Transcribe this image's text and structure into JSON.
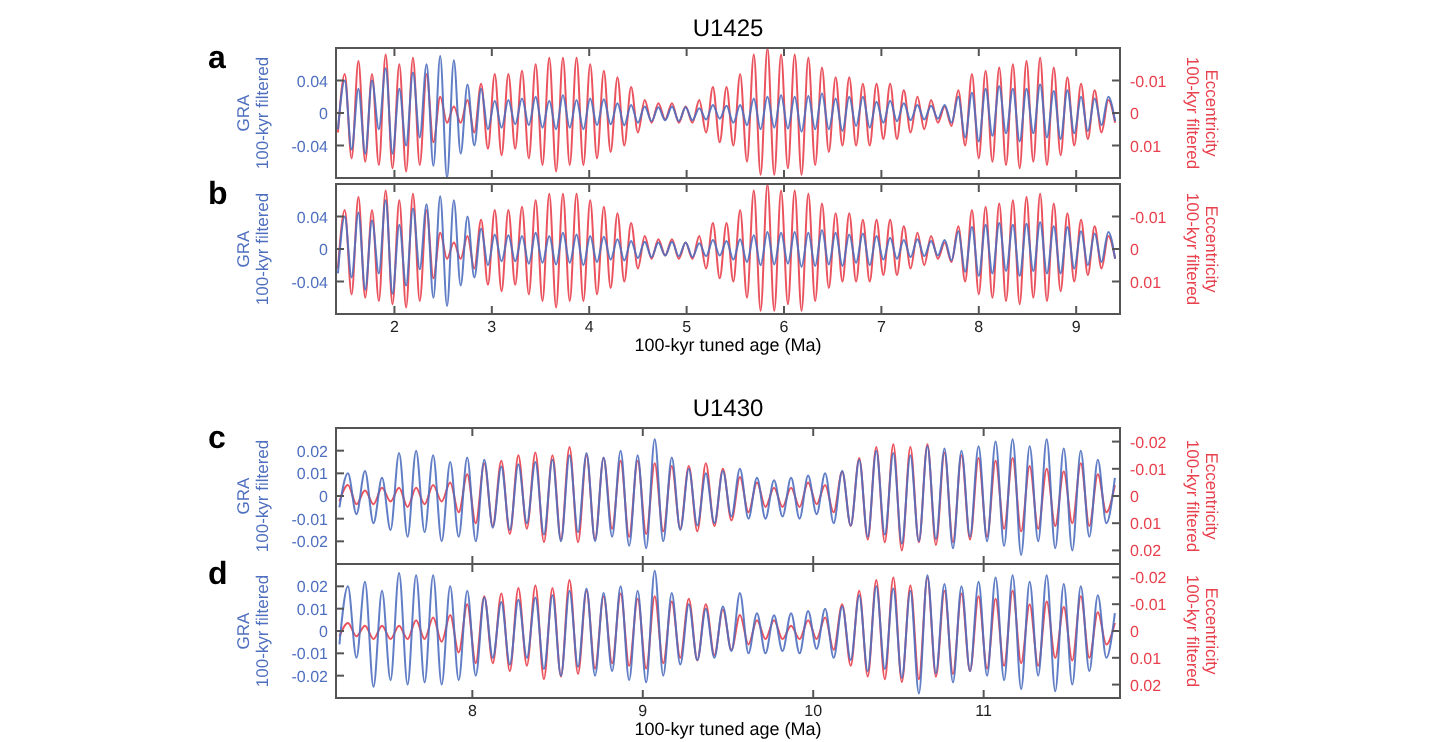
{
  "chart_data": [
    {
      "type": "line",
      "title": "U1425",
      "ylabel": "GRA\n100-kyr filtered",
      "y2label": "Eccentricity\n100-kyr filtered",
      "annotations": [
        "a"
      ],
      "tick_labels": "y",
      "xlim": [
        1.4,
        9.45
      ],
      "xticks": [
        2,
        3,
        4,
        5,
        6,
        7,
        8,
        9
      ],
      "ylim": [
        -0.08,
        0.08
      ],
      "yticks": [
        -0.04,
        0,
        0.04
      ],
      "y2lim": [
        0.02,
        -0.02
      ],
      "y2ticks": [
        0.01,
        0,
        -0.01
      ],
      "x": [
        1.42,
        1.49,
        1.56,
        1.63,
        1.7,
        1.77,
        1.84,
        1.91,
        1.98,
        2.05,
        2.12,
        2.19,
        2.26,
        2.33,
        2.4,
        2.47,
        2.54,
        2.61,
        2.68,
        2.75,
        2.82,
        2.89,
        2.96,
        3.03,
        3.1,
        3.17,
        3.24,
        3.31,
        3.38,
        3.45,
        3.52,
        3.59,
        3.66,
        3.73,
        3.8,
        3.87,
        3.94,
        4.01,
        4.08,
        4.15,
        4.22,
        4.29,
        4.36,
        4.43,
        4.5,
        4.57,
        4.64,
        4.71,
        4.78,
        4.85,
        4.92,
        4.99,
        5.06,
        5.13,
        5.2,
        5.27,
        5.34,
        5.41,
        5.48,
        5.55,
        5.62,
        5.69,
        5.76,
        5.83,
        5.9,
        5.97,
        6.04,
        6.11,
        6.18,
        6.25,
        6.32,
        6.39,
        6.46,
        6.53,
        6.6,
        6.67,
        6.74,
        6.81,
        6.88,
        6.95,
        7.02,
        7.09,
        7.16,
        7.23,
        7.3,
        7.37,
        7.44,
        7.51,
        7.58,
        7.65,
        7.72,
        7.79,
        7.86,
        7.93,
        8.0,
        8.07,
        8.14,
        8.21,
        8.28,
        8.35,
        8.42,
        8.49,
        8.56,
        8.63,
        8.7,
        8.77,
        8.84,
        8.91,
        8.98,
        9.05,
        9.12,
        9.19,
        9.26,
        9.33,
        9.4
      ],
      "series": [
        {
          "color": "#e8404c",
          "axis": "y2",
          "values": [
            0.006,
            -0.012,
            0.014,
            -0.016,
            0.015,
            -0.012,
            0.016,
            -0.018,
            0.017,
            -0.015,
            0.018,
            -0.017,
            0.016,
            -0.012,
            0.009,
            -0.005,
            0.003,
            -0.002,
            0.003,
            -0.004,
            0.006,
            -0.009,
            0.011,
            -0.012,
            0.013,
            -0.012,
            0.011,
            -0.013,
            0.014,
            -0.015,
            0.016,
            -0.017,
            0.018,
            -0.017,
            0.016,
            -0.017,
            0.016,
            -0.015,
            0.014,
            -0.013,
            0.012,
            -0.011,
            0.01,
            -0.008,
            0.006,
            -0.004,
            0.003,
            -0.003,
            0.002,
            -0.003,
            0.003,
            -0.002,
            0.003,
            -0.004,
            0.006,
            -0.008,
            0.009,
            -0.008,
            0.01,
            -0.012,
            0.015,
            -0.018,
            0.019,
            -0.02,
            0.019,
            -0.018,
            0.017,
            -0.018,
            0.019,
            -0.017,
            0.016,
            -0.014,
            0.012,
            -0.011,
            0.01,
            -0.011,
            0.01,
            -0.009,
            0.01,
            -0.009,
            0.008,
            -0.009,
            0.008,
            -0.007,
            0.006,
            -0.005,
            0.005,
            -0.004,
            0.003,
            -0.002,
            0.004,
            -0.007,
            0.01,
            -0.012,
            0.014,
            -0.013,
            0.015,
            -0.014,
            0.016,
            -0.015,
            0.017,
            -0.016,
            0.015,
            -0.017,
            0.016,
            -0.014,
            0.013,
            -0.011,
            0.01,
            -0.009,
            0.008,
            -0.007,
            0.006,
            -0.004,
            0.003
          ]
        },
        {
          "color": "#4f6fbf",
          "values": [
            -0.02,
            0.04,
            -0.045,
            0.03,
            -0.05,
            0.04,
            -0.02,
            0.055,
            -0.05,
            0.03,
            -0.04,
            0.05,
            -0.03,
            0.06,
            -0.065,
            0.07,
            -0.08,
            0.065,
            -0.05,
            0.035,
            -0.04,
            0.03,
            -0.02,
            0.015,
            -0.018,
            0.016,
            -0.014,
            0.018,
            -0.015,
            0.02,
            -0.018,
            0.015,
            -0.02,
            0.022,
            -0.018,
            0.016,
            -0.02,
            0.018,
            -0.015,
            0.017,
            -0.014,
            0.012,
            -0.015,
            0.01,
            -0.012,
            0.008,
            -0.01,
            0.007,
            -0.009,
            0.008,
            -0.01,
            0.007,
            -0.009,
            0.006,
            -0.008,
            0.01,
            -0.007,
            0.009,
            -0.012,
            0.01,
            -0.015,
            0.018,
            -0.02,
            0.02,
            -0.018,
            0.022,
            -0.019,
            0.02,
            -0.023,
            0.021,
            -0.02,
            0.024,
            -0.02,
            0.018,
            -0.022,
            0.02,
            -0.016,
            0.02,
            -0.018,
            0.014,
            -0.012,
            0.015,
            -0.01,
            0.012,
            -0.009,
            0.01,
            -0.008,
            0.009,
            -0.007,
            0.01,
            -0.012,
            0.02,
            -0.03,
            0.025,
            -0.035,
            0.03,
            -0.028,
            0.033,
            -0.025,
            0.03,
            -0.035,
            0.03,
            -0.025,
            0.035,
            -0.03,
            0.027,
            -0.032,
            0.028,
            -0.025,
            0.02,
            -0.022,
            0.018,
            -0.015,
            0.02,
            -0.01
          ]
        }
      ]
    },
    {
      "type": "line",
      "xlabel": "100-kyr tuned age (Ma)",
      "ylabel": "GRA\n100-kyr filtered",
      "y2label": "Eccentricity\n100-kyr filtered",
      "annotations": [
        "b"
      ],
      "xlim": [
        1.4,
        9.45
      ],
      "xticks": [
        2,
        3,
        4,
        5,
        6,
        7,
        8,
        9
      ],
      "ylim": [
        -0.08,
        0.08
      ],
      "yticks": [
        -0.04,
        0,
        0.04
      ],
      "y2lim": [
        0.02,
        -0.02
      ],
      "y2ticks": [
        0.01,
        0,
        -0.01
      ],
      "x": [
        1.42,
        1.49,
        1.56,
        1.63,
        1.7,
        1.77,
        1.84,
        1.91,
        1.98,
        2.05,
        2.12,
        2.19,
        2.26,
        2.33,
        2.4,
        2.47,
        2.54,
        2.61,
        2.68,
        2.75,
        2.82,
        2.89,
        2.96,
        3.03,
        3.1,
        3.17,
        3.24,
        3.31,
        3.38,
        3.45,
        3.52,
        3.59,
        3.66,
        3.73,
        3.8,
        3.87,
        3.94,
        4.01,
        4.08,
        4.15,
        4.22,
        4.29,
        4.36,
        4.43,
        4.5,
        4.57,
        4.64,
        4.71,
        4.78,
        4.85,
        4.92,
        4.99,
        5.06,
        5.13,
        5.2,
        5.27,
        5.34,
        5.41,
        5.48,
        5.55,
        5.62,
        5.69,
        5.76,
        5.83,
        5.9,
        5.97,
        6.04,
        6.11,
        6.18,
        6.25,
        6.32,
        6.39,
        6.46,
        6.53,
        6.6,
        6.67,
        6.74,
        6.81,
        6.88,
        6.95,
        7.02,
        7.09,
        7.16,
        7.23,
        7.3,
        7.37,
        7.44,
        7.51,
        7.58,
        7.65,
        7.72,
        7.79,
        7.86,
        7.93,
        8.0,
        8.07,
        8.14,
        8.21,
        8.28,
        8.35,
        8.42,
        8.49,
        8.56,
        8.63,
        8.7,
        8.77,
        8.84,
        8.91,
        8.98,
        9.05,
        9.12,
        9.19,
        9.26,
        9.33,
        9.4
      ],
      "series": [
        {
          "color": "#e8404c",
          "axis": "y2",
          "values": [
            0.006,
            -0.012,
            0.014,
            -0.016,
            0.015,
            -0.012,
            0.016,
            -0.018,
            0.017,
            -0.015,
            0.018,
            -0.017,
            0.016,
            -0.012,
            0.009,
            -0.005,
            0.003,
            -0.002,
            0.003,
            -0.004,
            0.006,
            -0.009,
            0.011,
            -0.012,
            0.013,
            -0.012,
            0.011,
            -0.013,
            0.014,
            -0.015,
            0.016,
            -0.017,
            0.018,
            -0.017,
            0.016,
            -0.017,
            0.016,
            -0.015,
            0.014,
            -0.013,
            0.012,
            -0.011,
            0.01,
            -0.008,
            0.006,
            -0.004,
            0.003,
            -0.003,
            0.002,
            -0.003,
            0.003,
            -0.002,
            0.003,
            -0.004,
            0.006,
            -0.008,
            0.009,
            -0.008,
            0.01,
            -0.012,
            0.015,
            -0.018,
            0.019,
            -0.02,
            0.019,
            -0.018,
            0.017,
            -0.018,
            0.019,
            -0.017,
            0.016,
            -0.014,
            0.012,
            -0.011,
            0.01,
            -0.011,
            0.01,
            -0.009,
            0.01,
            -0.009,
            0.008,
            -0.009,
            0.008,
            -0.007,
            0.006,
            -0.005,
            0.005,
            -0.004,
            0.003,
            -0.002,
            0.004,
            -0.007,
            0.01,
            -0.012,
            0.014,
            -0.013,
            0.015,
            -0.014,
            0.016,
            -0.015,
            0.017,
            -0.016,
            0.015,
            -0.017,
            0.016,
            -0.014,
            0.013,
            -0.011,
            0.01,
            -0.009,
            0.008,
            -0.007,
            0.006,
            -0.004,
            0.003
          ]
        },
        {
          "color": "#4f6fbf",
          "values": [
            -0.03,
            0.04,
            -0.035,
            0.045,
            -0.05,
            0.035,
            -0.03,
            0.06,
            -0.055,
            0.03,
            -0.045,
            0.05,
            -0.025,
            0.055,
            -0.06,
            0.065,
            -0.07,
            0.06,
            -0.045,
            0.04,
            -0.035,
            0.025,
            -0.02,
            0.018,
            -0.015,
            0.017,
            -0.015,
            0.016,
            -0.018,
            0.02,
            -0.017,
            0.016,
            -0.019,
            0.02,
            -0.017,
            0.018,
            -0.02,
            0.016,
            -0.016,
            0.015,
            -0.013,
            0.012,
            -0.014,
            0.01,
            -0.011,
            0.009,
            -0.01,
            0.008,
            -0.008,
            0.009,
            -0.009,
            0.008,
            -0.01,
            0.007,
            -0.009,
            0.011,
            -0.008,
            0.01,
            -0.013,
            0.012,
            -0.016,
            0.017,
            -0.02,
            0.021,
            -0.019,
            0.02,
            -0.018,
            0.021,
            -0.022,
            0.02,
            -0.021,
            0.023,
            -0.019,
            0.02,
            -0.021,
            0.018,
            -0.017,
            0.019,
            -0.02,
            0.016,
            -0.013,
            0.014,
            -0.012,
            0.011,
            -0.01,
            0.012,
            -0.009,
            0.01,
            -0.008,
            0.011,
            -0.014,
            0.022,
            -0.028,
            0.027,
            -0.033,
            0.03,
            -0.03,
            0.032,
            -0.027,
            0.03,
            -0.033,
            0.031,
            -0.027,
            0.033,
            -0.03,
            0.028,
            -0.03,
            0.027,
            -0.024,
            0.022,
            -0.02,
            0.019,
            -0.016,
            0.021,
            -0.012
          ]
        }
      ]
    },
    {
      "type": "line",
      "title": "U1430",
      "ylabel": "GRA\n100-kyr filtered",
      "y2label": "Eccentricity\n100-kyr filtered",
      "annotations": [
        "c"
      ],
      "tick_labels": "y",
      "xlim": [
        7.2,
        11.8
      ],
      "xticks": [
        8,
        9,
        10,
        11
      ],
      "ylim": [
        -0.03,
        0.03
      ],
      "yticks": [
        -0.02,
        -0.01,
        0,
        0.01,
        0.02
      ],
      "y2lim": [
        0.025,
        -0.025
      ],
      "y2ticks": [
        0.02,
        0.01,
        0,
        -0.01,
        -0.02
      ],
      "x": [
        7.22,
        7.27,
        7.32,
        7.37,
        7.42,
        7.47,
        7.52,
        7.57,
        7.62,
        7.67,
        7.72,
        7.77,
        7.82,
        7.87,
        7.92,
        7.97,
        8.02,
        8.07,
        8.12,
        8.17,
        8.22,
        8.27,
        8.32,
        8.37,
        8.42,
        8.47,
        8.52,
        8.57,
        8.62,
        8.67,
        8.72,
        8.77,
        8.82,
        8.87,
        8.92,
        8.97,
        9.02,
        9.07,
        9.12,
        9.17,
        9.22,
        9.27,
        9.32,
        9.37,
        9.42,
        9.47,
        9.52,
        9.57,
        9.62,
        9.67,
        9.72,
        9.77,
        9.82,
        9.87,
        9.92,
        9.97,
        10.02,
        10.07,
        10.12,
        10.17,
        10.22,
        10.27,
        10.32,
        10.37,
        10.42,
        10.47,
        10.52,
        10.57,
        10.62,
        10.67,
        10.72,
        10.77,
        10.82,
        10.87,
        10.92,
        10.97,
        11.02,
        11.07,
        11.12,
        11.17,
        11.22,
        11.27,
        11.32,
        11.37,
        11.42,
        11.47,
        11.52,
        11.57,
        11.62,
        11.67,
        11.72,
        11.77
      ],
      "series": [
        {
          "color": "#e8404c",
          "axis": "y2",
          "values": [
            0.002,
            -0.004,
            0.003,
            -0.002,
            0.003,
            -0.003,
            0.002,
            -0.003,
            0.004,
            -0.003,
            0.003,
            -0.004,
            0.002,
            -0.005,
            0.006,
            -0.008,
            0.01,
            -0.012,
            0.011,
            -0.013,
            0.014,
            -0.015,
            0.012,
            -0.016,
            0.017,
            -0.015,
            0.016,
            -0.018,
            0.017,
            -0.015,
            0.016,
            -0.014,
            0.012,
            -0.013,
            0.015,
            -0.013,
            0.014,
            -0.012,
            0.013,
            -0.011,
            0.012,
            -0.011,
            0.013,
            -0.012,
            0.011,
            -0.01,
            0.009,
            -0.007,
            0.006,
            -0.005,
            0.004,
            -0.003,
            0.004,
            -0.003,
            0.004,
            -0.005,
            0.003,
            -0.004,
            0.006,
            -0.009,
            0.011,
            -0.014,
            0.016,
            -0.018,
            0.017,
            -0.019,
            0.02,
            -0.018,
            0.017,
            -0.019,
            0.018,
            -0.016,
            0.017,
            -0.015,
            0.016,
            -0.014,
            0.015,
            -0.013,
            0.012,
            -0.014,
            0.013,
            -0.011,
            0.012,
            -0.01,
            0.011,
            -0.009,
            0.01,
            -0.012,
            0.011,
            -0.008,
            0.006,
            -0.004
          ]
        },
        {
          "color": "#4f6fbf",
          "values": [
            -0.005,
            0.01,
            -0.008,
            0.011,
            -0.012,
            0.008,
            -0.015,
            0.019,
            -0.018,
            0.02,
            -0.016,
            0.018,
            -0.02,
            0.015,
            -0.018,
            0.017,
            -0.02,
            0.016,
            -0.014,
            0.013,
            -0.015,
            0.014,
            -0.012,
            0.015,
            -0.017,
            0.016,
            -0.02,
            0.018,
            -0.016,
            0.019,
            -0.02,
            0.017,
            -0.018,
            0.02,
            -0.022,
            0.018,
            -0.023,
            0.025,
            -0.02,
            0.017,
            -0.015,
            0.012,
            -0.013,
            0.01,
            -0.012,
            0.011,
            -0.009,
            0.012,
            -0.01,
            0.008,
            -0.01,
            0.007,
            -0.009,
            0.008,
            -0.01,
            0.009,
            -0.008,
            0.01,
            -0.012,
            0.011,
            -0.013,
            0.016,
            -0.018,
            0.02,
            -0.017,
            0.019,
            -0.021,
            0.018,
            -0.02,
            0.022,
            -0.019,
            0.021,
            -0.023,
            0.02,
            -0.018,
            0.022,
            -0.02,
            0.024,
            -0.022,
            0.025,
            -0.026,
            0.022,
            -0.02,
            0.025,
            -0.023,
            0.021,
            -0.024,
            0.02,
            -0.018,
            0.016,
            -0.012,
            0.008
          ]
        }
      ]
    },
    {
      "type": "line",
      "xlabel": "100-kyr tuned age (Ma)",
      "ylabel": "GRA\n100-kyr filtered",
      "y2label": "Eccentricity\n100-kyr filtered",
      "annotations": [
        "d"
      ],
      "xlim": [
        7.2,
        11.8
      ],
      "xticks": [
        8,
        9,
        10,
        11
      ],
      "ylim": [
        -0.03,
        0.03
      ],
      "yticks": [
        -0.02,
        -0.01,
        0,
        0.01,
        0.02
      ],
      "y2lim": [
        0.025,
        -0.025
      ],
      "y2ticks": [
        0.02,
        0.01,
        0,
        -0.01,
        -0.02
      ],
      "x": [
        7.22,
        7.27,
        7.32,
        7.37,
        7.42,
        7.47,
        7.52,
        7.57,
        7.62,
        7.67,
        7.72,
        7.77,
        7.82,
        7.87,
        7.92,
        7.97,
        8.02,
        8.07,
        8.12,
        8.17,
        8.22,
        8.27,
        8.32,
        8.37,
        8.42,
        8.47,
        8.52,
        8.57,
        8.62,
        8.67,
        8.72,
        8.77,
        8.82,
        8.87,
        8.92,
        8.97,
        9.02,
        9.07,
        9.12,
        9.17,
        9.22,
        9.27,
        9.32,
        9.37,
        9.42,
        9.47,
        9.52,
        9.57,
        9.62,
        9.67,
        9.72,
        9.77,
        9.82,
        9.87,
        9.92,
        9.97,
        10.02,
        10.07,
        10.12,
        10.17,
        10.22,
        10.27,
        10.32,
        10.37,
        10.42,
        10.47,
        10.52,
        10.57,
        10.62,
        10.67,
        10.72,
        10.77,
        10.82,
        10.87,
        10.92,
        10.97,
        11.02,
        11.07,
        11.12,
        11.17,
        11.22,
        11.27,
        11.32,
        11.37,
        11.42,
        11.47,
        11.52,
        11.57,
        11.62,
        11.67,
        11.72,
        11.77
      ],
      "series": [
        {
          "color": "#e8404c",
          "axis": "y2",
          "values": [
            0.002,
            -0.003,
            0.002,
            -0.002,
            0.003,
            -0.002,
            0.003,
            -0.002,
            0.003,
            -0.004,
            0.003,
            -0.005,
            0.004,
            -0.006,
            0.008,
            -0.01,
            0.012,
            -0.013,
            0.012,
            -0.014,
            0.015,
            -0.016,
            0.013,
            -0.017,
            0.018,
            -0.016,
            0.017,
            -0.019,
            0.016,
            -0.015,
            0.014,
            -0.013,
            0.012,
            -0.014,
            0.013,
            -0.012,
            0.014,
            -0.013,
            0.012,
            -0.011,
            0.01,
            -0.012,
            0.011,
            -0.01,
            0.009,
            -0.008,
            0.007,
            -0.006,
            0.005,
            -0.004,
            0.003,
            -0.004,
            0.003,
            -0.002,
            0.003,
            -0.004,
            0.003,
            -0.005,
            0.007,
            -0.01,
            0.013,
            -0.015,
            0.017,
            -0.019,
            0.018,
            -0.02,
            0.019,
            -0.017,
            0.018,
            -0.02,
            0.017,
            -0.015,
            0.016,
            -0.014,
            0.015,
            -0.013,
            0.014,
            -0.012,
            0.013,
            -0.015,
            0.012,
            -0.01,
            0.013,
            -0.011,
            0.01,
            -0.009,
            0.011,
            -0.013,
            0.01,
            -0.007,
            0.005,
            -0.003
          ]
        },
        {
          "color": "#4f6fbf",
          "values": [
            -0.006,
            0.02,
            -0.012,
            0.022,
            -0.025,
            0.018,
            -0.022,
            0.026,
            -0.024,
            0.025,
            -0.023,
            0.025,
            -0.024,
            0.02,
            -0.022,
            0.018,
            -0.02,
            0.015,
            -0.012,
            0.013,
            -0.015,
            0.014,
            -0.012,
            0.015,
            -0.017,
            0.016,
            -0.02,
            0.018,
            -0.016,
            0.019,
            -0.02,
            0.017,
            -0.018,
            0.02,
            -0.022,
            0.018,
            -0.023,
            0.027,
            -0.02,
            0.017,
            -0.015,
            0.012,
            -0.013,
            0.01,
            -0.012,
            0.011,
            -0.009,
            0.017,
            -0.01,
            0.008,
            -0.01,
            0.007,
            -0.009,
            0.008,
            -0.01,
            0.009,
            -0.008,
            0.01,
            -0.012,
            0.011,
            -0.013,
            0.016,
            -0.018,
            0.02,
            -0.017,
            0.019,
            -0.021,
            0.018,
            -0.028,
            0.025,
            -0.019,
            0.021,
            -0.023,
            0.02,
            -0.018,
            0.022,
            -0.02,
            0.024,
            -0.022,
            0.025,
            -0.026,
            0.022,
            -0.02,
            0.025,
            -0.027,
            0.021,
            -0.024,
            0.02,
            -0.018,
            0.016,
            -0.012,
            0.008
          ]
        }
      ]
    }
  ]
}
